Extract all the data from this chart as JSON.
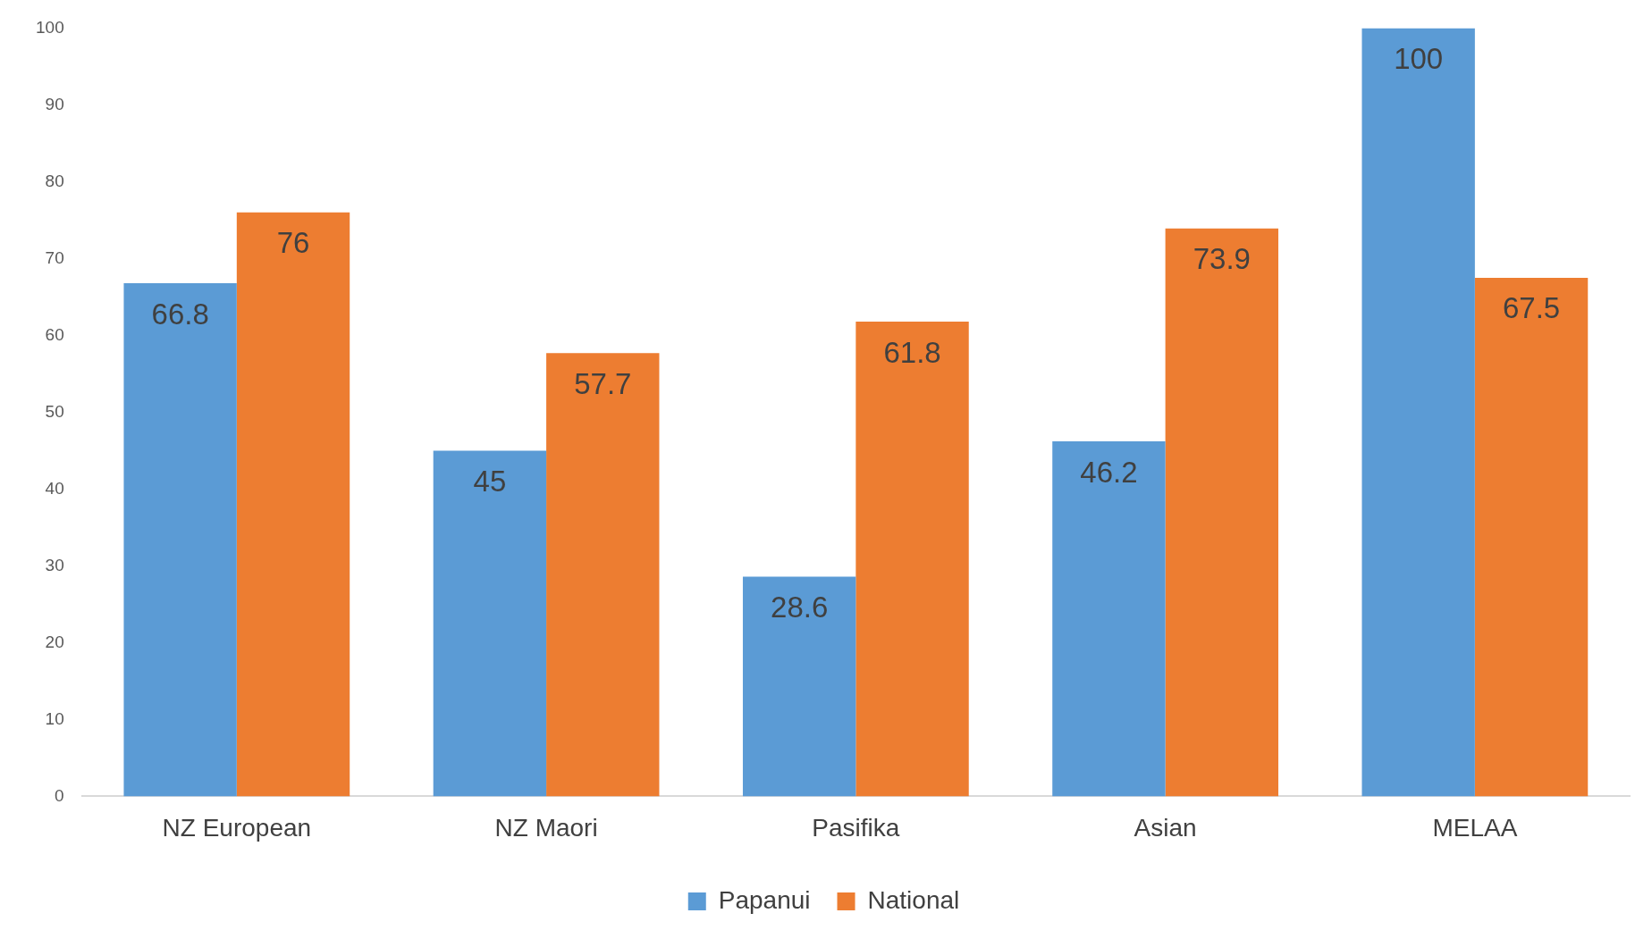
{
  "chart_data": {
    "type": "bar",
    "categories": [
      "NZ European",
      "NZ Maori",
      "Pasifika",
      "Asian",
      "MELAA"
    ],
    "series": [
      {
        "name": "Papanui",
        "color": "#5b9bd5",
        "values": [
          66.8,
          45,
          28.6,
          46.2,
          100
        ]
      },
      {
        "name": "National",
        "color": "#ed7d31",
        "values": [
          76,
          57.7,
          61.8,
          73.9,
          67.5
        ]
      }
    ],
    "ylim": [
      0,
      100
    ],
    "yticks": [
      0,
      10,
      20,
      30,
      40,
      50,
      60,
      70,
      80,
      90,
      100
    ],
    "grid": false,
    "legend": "bottom",
    "data_labels": true
  }
}
